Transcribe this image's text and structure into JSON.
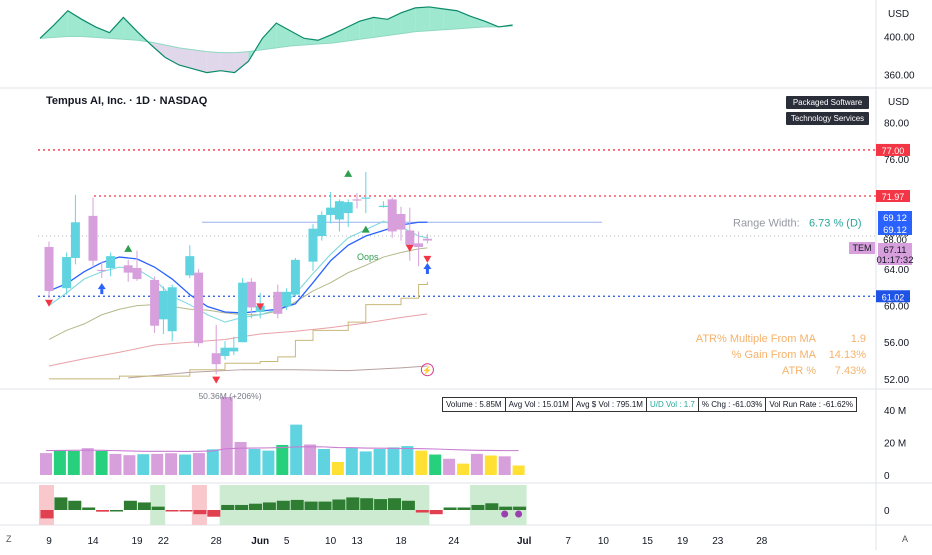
{
  "header": {
    "symbol_title": "Tempus AI, Inc. · 1D · NASDAQ",
    "badge_sector": "Packaged Software",
    "badge_industry": "Technology Services"
  },
  "colors": {
    "bull": "#5fd4e0",
    "bear": "#d7a0dc",
    "green_bar": "#26d07c",
    "yellow_bar": "#ffe033",
    "blue_line": "#2962ff",
    "red_dotted": "#f23645",
    "blue_dotted": "#1e53e5",
    "atr_text": "#f5b26b",
    "rs_fill": "#7fe0c0",
    "rs_line": "#0a8a6a"
  },
  "chart_data": [
    {
      "type": "area",
      "name": "relative-strength",
      "axis_currency": "USD",
      "ticks": [
        400.0,
        360.0
      ],
      "ylim": [
        350,
        432
      ],
      "x": [
        0,
        1,
        2,
        3,
        4,
        5,
        6,
        7,
        8,
        9,
        10,
        11,
        12,
        13,
        14,
        15,
        16,
        17,
        18,
        19,
        20,
        21,
        22,
        23,
        24,
        25,
        26,
        27,
        28,
        29,
        30,
        31,
        32,
        33,
        34
      ],
      "line": [
        398,
        412,
        427,
        418,
        410,
        404,
        420,
        405,
        391,
        378,
        370,
        366,
        362,
        364,
        362,
        374,
        398,
        414,
        406,
        398,
        396,
        402,
        409,
        416,
        420,
        418,
        425,
        430,
        431,
        429,
        427,
        421,
        416,
        410,
        412
      ],
      "baseline": [
        398,
        399,
        400,
        400,
        399,
        398,
        397,
        396,
        394,
        391,
        388,
        386,
        384,
        383,
        383,
        384,
        386,
        388,
        390,
        391,
        392,
        393,
        395,
        397,
        399,
        401,
        403,
        405,
        406,
        407,
        408,
        409,
        410,
        410,
        411
      ]
    },
    {
      "type": "candlestick",
      "name": "price",
      "axis_currency": "USD",
      "ticks": [
        80.0,
        76.0,
        68.0,
        64.0,
        60.0,
        56.0,
        52.0
      ],
      "ylim": [
        51,
        83
      ],
      "x_labels": [
        "9",
        "14",
        "19",
        "22",
        "28",
        "Jun",
        "5",
        "10",
        "13",
        "18",
        "24",
        "Jul",
        "7",
        "10",
        "15",
        "19",
        "23",
        "28"
      ],
      "x_label_days": [
        9,
        14,
        19,
        22,
        28,
        33,
        36,
        41,
        44,
        49,
        55,
        63,
        68,
        72,
        77,
        81,
        85,
        90
      ],
      "candles": [
        {
          "d": 9,
          "o": 66.4,
          "h": 67.0,
          "l": 60.8,
          "c": 61.6
        },
        {
          "d": 11,
          "o": 61.9,
          "h": 65.8,
          "l": 61.2,
          "c": 65.3
        },
        {
          "d": 12,
          "o": 65.2,
          "h": 72.1,
          "l": 64.5,
          "c": 69.1
        },
        {
          "d": 14,
          "o": 69.8,
          "h": 71.8,
          "l": 64.2,
          "c": 64.9
        },
        {
          "d": 15,
          "o": 63.9,
          "h": 64.8,
          "l": 63.0,
          "c": 63.8
        },
        {
          "d": 16,
          "o": 64.1,
          "h": 65.8,
          "l": 63.2,
          "c": 65.4
        },
        {
          "d": 18,
          "o": 64.4,
          "h": 65.0,
          "l": 62.6,
          "c": 63.6
        },
        {
          "d": 19,
          "o": 64.1,
          "h": 66.0,
          "l": 62.7,
          "c": 62.9
        },
        {
          "d": 21,
          "o": 62.8,
          "h": 63.2,
          "l": 57.0,
          "c": 57.8
        },
        {
          "d": 22,
          "o": 58.5,
          "h": 62.1,
          "l": 56.9,
          "c": 61.6
        },
        {
          "d": 23,
          "o": 57.2,
          "h": 62.3,
          "l": 56.1,
          "c": 62.0
        },
        {
          "d": 25,
          "o": 63.3,
          "h": 66.6,
          "l": 63.0,
          "c": 65.4
        },
        {
          "d": 26,
          "o": 63.6,
          "h": 64.0,
          "l": 55.5,
          "c": 55.9
        },
        {
          "d": 28,
          "o": 54.8,
          "h": 57.9,
          "l": 52.5,
          "c": 53.6
        },
        {
          "d": 29,
          "o": 54.5,
          "h": 56.1,
          "l": 54.1,
          "c": 55.4
        },
        {
          "d": 30,
          "o": 55.0,
          "h": 56.6,
          "l": 54.6,
          "c": 55.4
        },
        {
          "d": 31,
          "o": 56.0,
          "h": 63.0,
          "l": 56.0,
          "c": 62.5
        },
        {
          "d": 32,
          "o": 62.6,
          "h": 63.0,
          "l": 58.6,
          "c": 59.8
        },
        {
          "d": 33,
          "o": 59.3,
          "h": 61.4,
          "l": 58.6,
          "c": 60.0
        },
        {
          "d": 35,
          "o": 61.5,
          "h": 62.3,
          "l": 58.6,
          "c": 59.1
        },
        {
          "d": 36,
          "o": 59.9,
          "h": 61.9,
          "l": 59.5,
          "c": 61.5
        },
        {
          "d": 37,
          "o": 61.2,
          "h": 65.2,
          "l": 61.0,
          "c": 65.0
        },
        {
          "d": 39,
          "o": 64.8,
          "h": 68.9,
          "l": 63.8,
          "c": 68.4
        },
        {
          "d": 40,
          "o": 67.6,
          "h": 70.3,
          "l": 67.1,
          "c": 69.9
        },
        {
          "d": 41,
          "o": 69.9,
          "h": 72.4,
          "l": 69.0,
          "c": 70.7
        },
        {
          "d": 42,
          "o": 69.4,
          "h": 71.6,
          "l": 68.1,
          "c": 71.4
        },
        {
          "d": 43,
          "o": 70.1,
          "h": 71.6,
          "l": 68.6,
          "c": 71.3
        },
        {
          "d": 44,
          "o": 71.6,
          "h": 72.3,
          "l": 70.6,
          "c": 71.5
        },
        {
          "d": 45,
          "o": 71.8,
          "h": 74.6,
          "l": 70.1,
          "c": 71.8
        },
        {
          "d": 47,
          "o": 70.9,
          "h": 71.4,
          "l": 70.7,
          "c": 70.9
        },
        {
          "d": 48,
          "o": 71.6,
          "h": 71.8,
          "l": 67.4,
          "c": 68.1
        },
        {
          "d": 49,
          "o": 70.0,
          "h": 70.8,
          "l": 67.1,
          "c": 68.3
        },
        {
          "d": 50,
          "o": 68.2,
          "h": 70.7,
          "l": 64.9,
          "c": 66.6
        },
        {
          "d": 51,
          "o": 66.8,
          "h": 68.1,
          "l": 64.3,
          "c": 66.4
        },
        {
          "d": 52,
          "o": 67.3,
          "h": 67.8,
          "l": 66.8,
          "c": 67.1
        }
      ],
      "ma_fast": [
        [
          9,
          60.0
        ],
        [
          11,
          61.4
        ],
        [
          13,
          62.9
        ],
        [
          15,
          63.7
        ],
        [
          17,
          64.2
        ],
        [
          19,
          64.0
        ],
        [
          21,
          62.8
        ],
        [
          23,
          61.0
        ],
        [
          25,
          60.1
        ],
        [
          27,
          59.0
        ],
        [
          29,
          58.2
        ],
        [
          31,
          58.7
        ],
        [
          33,
          59.0
        ],
        [
          35,
          59.6
        ],
        [
          37,
          61.3
        ],
        [
          39,
          63.5
        ],
        [
          41,
          65.6
        ],
        [
          43,
          67.4
        ],
        [
          45,
          68.3
        ],
        [
          47,
          69.2
        ],
        [
          49,
          68.6
        ],
        [
          51,
          67.6
        ],
        [
          52,
          67.4
        ]
      ],
      "ma_blue": [
        [
          9,
          61.6
        ],
        [
          11,
          62.4
        ],
        [
          13,
          63.7
        ],
        [
          15,
          64.7
        ],
        [
          17,
          65.3
        ],
        [
          19,
          65.1
        ],
        [
          21,
          64.2
        ],
        [
          23,
          62.9
        ],
        [
          25,
          61.2
        ],
        [
          27,
          59.9
        ],
        [
          29,
          59.3
        ],
        [
          31,
          59.2
        ],
        [
          33,
          59.4
        ],
        [
          35,
          59.6
        ],
        [
          37,
          60.2
        ],
        [
          39,
          62.5
        ],
        [
          41,
          64.9
        ],
        [
          43,
          66.6
        ],
        [
          45,
          67.6
        ],
        [
          47,
          68.2
        ],
        [
          49,
          68.8
        ],
        [
          51,
          69.1
        ],
        [
          52,
          69.1
        ]
      ],
      "ma_olive": [
        [
          9,
          56.3
        ],
        [
          11,
          57.3
        ],
        [
          13,
          58.0
        ],
        [
          15,
          59.0
        ],
        [
          17,
          59.6
        ],
        [
          19,
          60.0
        ],
        [
          21,
          60.1
        ],
        [
          23,
          59.9
        ],
        [
          25,
          59.6
        ],
        [
          27,
          59.5
        ],
        [
          29,
          59.2
        ],
        [
          31,
          59.0
        ],
        [
          33,
          59.0
        ],
        [
          35,
          59.4
        ],
        [
          37,
          60.4
        ],
        [
          39,
          61.6
        ],
        [
          41,
          62.5
        ],
        [
          43,
          63.6
        ],
        [
          45,
          64.4
        ],
        [
          47,
          65.3
        ],
        [
          49,
          65.8
        ],
        [
          51,
          66.2
        ],
        [
          52,
          66.3
        ]
      ],
      "ma_red": [
        [
          9,
          53.4
        ],
        [
          13,
          54.2
        ],
        [
          17,
          54.9
        ],
        [
          21,
          55.7
        ],
        [
          25,
          56.0
        ],
        [
          29,
          56.3
        ],
        [
          33,
          56.9
        ],
        [
          37,
          57.2
        ],
        [
          41,
          57.6
        ],
        [
          45,
          58.1
        ],
        [
          49,
          58.7
        ],
        [
          52,
          59.1
        ]
      ],
      "ma_tan_step": [
        [
          9,
          52.0
        ],
        [
          17,
          52.3
        ],
        [
          25,
          53.0
        ],
        [
          29,
          53.7
        ],
        [
          33,
          53.9
        ],
        [
          35,
          54.4
        ],
        [
          37,
          56.2
        ],
        [
          39,
          57.3
        ],
        [
          43,
          58.2
        ],
        [
          45,
          60.1
        ],
        [
          49,
          60.8
        ],
        [
          51,
          62.3
        ],
        [
          52,
          62.6
        ]
      ],
      "ma_gray": [
        [
          18,
          52.1
        ],
        [
          25,
          52.7
        ],
        [
          31,
          53.0
        ],
        [
          37,
          53.0
        ],
        [
          43,
          52.9
        ],
        [
          49,
          53.2
        ],
        [
          52,
          53.4
        ]
      ],
      "levels": [
        {
          "price": 77.0,
          "label": "77.00",
          "style": "red-dotted"
        },
        {
          "price": 71.97,
          "label": "71.97",
          "style": "red-dotted"
        },
        {
          "price": 61.02,
          "label": "61.02",
          "style": "blue-dotted"
        }
      ],
      "range_line_price": 69.1,
      "range_width_label": "Range Width:",
      "range_width_value": "6.73 % (D)",
      "price_tags": [
        {
          "label": "69.12",
          "kind": "blue"
        },
        {
          "label": "69.12",
          "kind": "blue"
        },
        {
          "label": "68.00",
          "kind": "gray"
        },
        {
          "label": "67.11",
          "kind": "price"
        },
        {
          "label": "01:17:32",
          "kind": "price"
        }
      ],
      "ticker_tag": "TEM",
      "oops_label": "Oops",
      "atr_rows": [
        {
          "label": "ATR% Multiple From MA",
          "value": "1.9"
        },
        {
          "label": "% Gain From MA",
          "value": "14.13%"
        },
        {
          "label": "ATR %",
          "value": "7.43%"
        }
      ],
      "markers": [
        {
          "d": 9,
          "p": 60.2,
          "kind": "red-down"
        },
        {
          "d": 15,
          "p": 61.8,
          "kind": "blue-up"
        },
        {
          "d": 18,
          "p": 66.3,
          "kind": "green-up"
        },
        {
          "d": 28,
          "p": 51.8,
          "kind": "red-down"
        },
        {
          "d": 33,
          "p": 59.8,
          "kind": "red-down"
        },
        {
          "d": 43,
          "p": 74.5,
          "kind": "green-up"
        },
        {
          "d": 45,
          "p": 68.4,
          "kind": "green-up"
        },
        {
          "d": 50,
          "p": 66.2,
          "kind": "red-down"
        },
        {
          "d": 52,
          "p": 65.0,
          "kind": "red-down"
        },
        {
          "d": 52,
          "p": 64.0,
          "kind": "blue-up"
        }
      ]
    },
    {
      "type": "bar",
      "name": "volume",
      "ticks": [
        "40 M",
        "20 M",
        "0"
      ],
      "ylim_millions": [
        0,
        48
      ],
      "peak_label": "50.36M (+206%)",
      "values_millions": [
        13.5,
        15.2,
        14.8,
        16.5,
        14.8,
        13.0,
        12.2,
        12.8,
        13.0,
        13.4,
        12.6,
        13.5,
        15.8,
        50.4,
        20.3,
        16.0,
        15.0,
        18.5,
        31.0,
        18.8,
        16.0,
        8.0,
        16.8,
        14.5,
        16.0,
        17.0,
        17.8,
        15.0,
        12.6,
        10.0,
        7.0,
        13.0,
        12.0,
        11.5,
        5.85
      ],
      "colors": [
        "bear",
        "green",
        "green",
        "bear",
        "green",
        "bear",
        "bear",
        "bull",
        "bear",
        "bear",
        "bull",
        "bear",
        "bull",
        "bear",
        "bear",
        "bull",
        "bull",
        "green",
        "bull",
        "bear",
        "bull",
        "yellow",
        "bull",
        "bull",
        "bull",
        "bull",
        "bull",
        "yellow",
        "green",
        "bear",
        "yellow",
        "bear",
        "yellow",
        "bear",
        "yellow"
      ],
      "stats_box": [
        "Volume : 5.85M",
        "Avg Vol : 15.01M",
        "Avg $ Vol : 795.1M",
        "U/D Vol : 1.7",
        "% Chg : -61.03%",
        "Vol Run Rate : -61.62%"
      ]
    },
    {
      "type": "bar",
      "name": "histogram",
      "ticks": [
        "0"
      ],
      "ylim": [
        -4,
        6
      ],
      "values": [
        -2.0,
        3.0,
        2.2,
        0.6,
        -0.4,
        0.0,
        2.2,
        1.8,
        0.8,
        -0.3,
        -0.2,
        -1.0,
        -1.6,
        1.2,
        1.2,
        1.5,
        1.8,
        2.2,
        2.4,
        2.0,
        2.0,
        2.5,
        3.0,
        2.8,
        2.6,
        2.8,
        2.2,
        -0.6,
        -1.0,
        0.6,
        0.6,
        1.2,
        1.6,
        0.8,
        0.8
      ],
      "shaded_ranges": [
        [
          0,
          0,
          "pink"
        ],
        [
          8,
          8,
          "green"
        ],
        [
          11,
          11,
          "pink"
        ],
        [
          13,
          27,
          "green"
        ],
        [
          31,
          34,
          "green"
        ]
      ]
    }
  ],
  "xaxis": {
    "labels": [
      "9",
      "14",
      "19",
      "22",
      "28",
      "Jun",
      "5",
      "10",
      "13",
      "18",
      "24",
      "Jul",
      "7",
      "10",
      "15",
      "19",
      "23",
      "28"
    ],
    "left_button": "Z",
    "right_button": "A"
  }
}
